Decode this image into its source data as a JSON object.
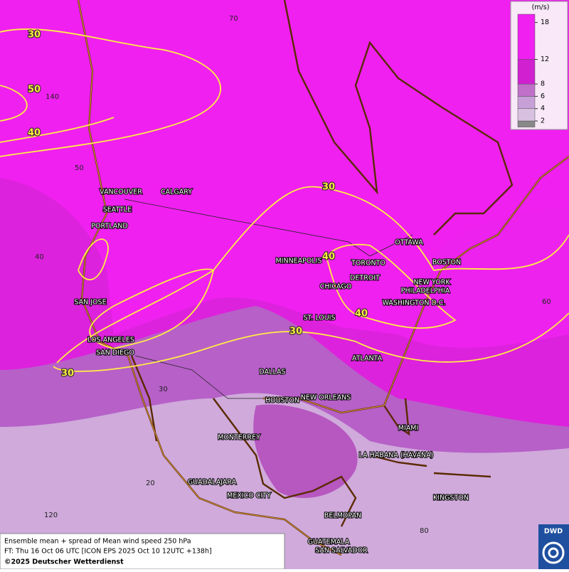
{
  "map": {
    "legend": {
      "unit": "(m/s)",
      "ticks": [
        18,
        12,
        8,
        6,
        4,
        2
      ]
    },
    "contour_labels": [
      30,
      50,
      40,
      30,
      40,
      40,
      30,
      30
    ],
    "grid_labels": [
      "70",
      "140",
      "50",
      "40",
      "30",
      "20",
      "120",
      "80",
      "60"
    ],
    "cities": [
      "VANCOUVER",
      "CALGARY",
      "SEATTLE",
      "PORTLAND",
      "SAN JOSE",
      "LOS ANGELES",
      "SAN DIEGO",
      "MINNEAPOLIS",
      "TORONTO",
      "DETROIT",
      "OTTAWA",
      "BOSTON",
      "NEW YORK",
      "PHILADELPHIA",
      "WASHINGTON D.C.",
      "CHICAGO",
      "ST. LOUIS",
      "DALLAS",
      "ATLANTA",
      "HOUSTON",
      "NEW ORLEANS",
      "MIAMI",
      "MONTERREY",
      "LA HABANA (HAVANA)",
      "GUADALAJARA",
      "MEXICO CITY",
      "KINGSTON",
      "BELMOPAN",
      "GUATEMALA",
      "SAN SALVADOR"
    ],
    "caption": [
      "Ensemble mean + spread of Mean wind speed 250 hPa",
      "FT: Thu 16 Oct 06 UTC [ICON EPS 2025 Oct 10 12UTC +138h]",
      "©2025 Deutscher Wetterdienst"
    ],
    "logo": "DWD"
  }
}
